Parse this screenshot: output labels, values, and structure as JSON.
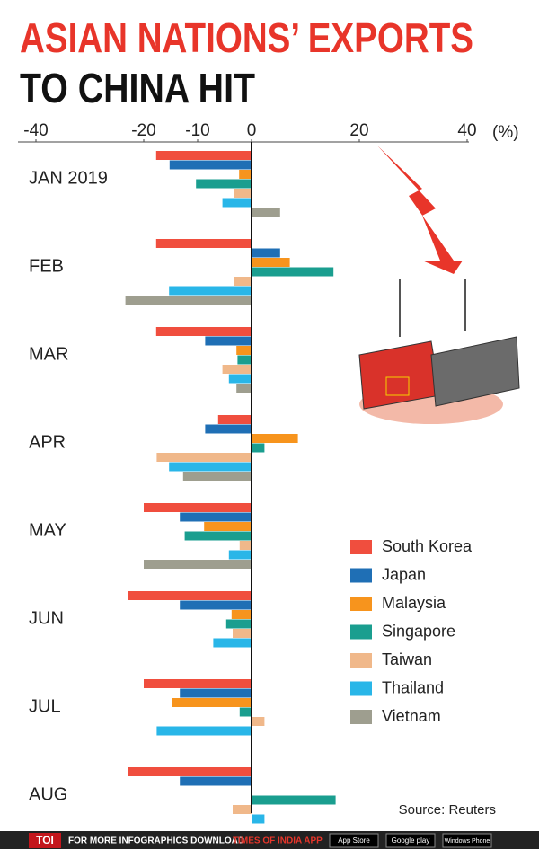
{
  "chart_data": {
    "type": "hbar",
    "title": [
      "ASIAN NATIONS’ EXPORTS",
      "TO CHINA HIT"
    ],
    "unit_label": "(%)",
    "categories": [
      "JAN 2019",
      "FEB",
      "MAR",
      "APR",
      "MAY",
      "JUN",
      "JUL",
      "AUG"
    ],
    "series": [
      {
        "name": "South Korea",
        "color": "#f04e3e",
        "values": [
          -17.7,
          -17.7,
          -17.7,
          -6.2,
          -20,
          -23,
          -20,
          -23
        ]
      },
      {
        "name": "Japan",
        "color": "#1f6fb5",
        "values": [
          -15.2,
          5.3,
          -8.6,
          -8.6,
          -13.3,
          -13.3,
          -13.3,
          -13.3
        ]
      },
      {
        "name": "Malaysia",
        "color": "#f7941d",
        "values": [
          -2.3,
          7.1,
          -2.8,
          8.6,
          -8.8,
          -3.7,
          -14.8,
          null
        ]
      },
      {
        "name": "Singapore",
        "color": "#1a9e8f",
        "values": [
          -10.3,
          15.2,
          -2.6,
          2.4,
          -12.4,
          -4.7,
          -2.2,
          15.6
        ]
      },
      {
        "name": "Taiwan",
        "color": "#f0b88a",
        "values": [
          -3.2,
          -3.2,
          -5.4,
          -17.6,
          -2.2,
          -3.5,
          2.4,
          -3.5
        ]
      },
      {
        "name": "Thailand",
        "color": "#29b6e8",
        "values": [
          -5.4,
          -15.3,
          -4.2,
          -15.3,
          -4.2,
          -7.1,
          -17.6,
          2.4
        ]
      },
      {
        "name": "Vietnam",
        "color": "#9e9e8f",
        "values": [
          5.3,
          -23.4,
          -2.8,
          -12.7,
          -20,
          null,
          null,
          null
        ]
      }
    ],
    "xlim": [
      -40,
      40
    ],
    "xticks": [
      -40,
      -20,
      -10,
      0,
      20,
      40
    ],
    "source": "Source: Reuters"
  },
  "footer": {
    "brand": "TOI",
    "text": "FOR MORE  INFOGRAPHICS DOWNLOAD",
    "app": "TIMES OF INDIA  APP",
    "badges": [
      "App Store",
      "Google play",
      "Windows Phone"
    ]
  }
}
